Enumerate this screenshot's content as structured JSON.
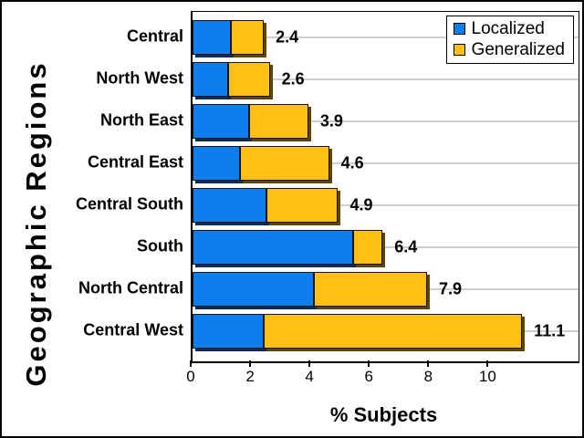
{
  "legend": {
    "items": [
      {
        "label": "Localized",
        "color": "#0D7EF0"
      },
      {
        "label": "Generalized",
        "color": "#FFC013"
      }
    ]
  },
  "chart_data": {
    "type": "bar",
    "orientation": "horizontal",
    "stacked": true,
    "title": "",
    "xlabel": "% Subjects",
    "ylabel": "Geographic Regions",
    "categories": [
      "Central",
      "North West",
      "North East",
      "Central East",
      "Central South",
      "South",
      "North Central",
      "Central West"
    ],
    "series": [
      {
        "name": "Localized",
        "color": "#0D7EF0",
        "values": [
          1.3,
          1.2,
          1.9,
          1.6,
          2.5,
          5.4,
          4.1,
          2.4
        ]
      },
      {
        "name": "Generalized",
        "color": "#FFC013",
        "values": [
          1.1,
          1.4,
          2.0,
          3.0,
          2.4,
          1.0,
          3.8,
          8.7
        ]
      }
    ],
    "totals": [
      2.4,
      2.6,
      3.9,
      4.6,
      4.9,
      6.4,
      7.9,
      11.1
    ],
    "total_labels": [
      "2.4",
      "2.6",
      "3.9",
      "4.6",
      "4.9",
      "6.4",
      "7.9",
      "11.1"
    ],
    "xticks": [
      0,
      2,
      4,
      6,
      8,
      10
    ],
    "xlim": [
      0,
      13
    ],
    "grid": "horizontal-category-lines",
    "gridline_color": "#cfcfcf",
    "legend_position": "top-right-inside"
  }
}
